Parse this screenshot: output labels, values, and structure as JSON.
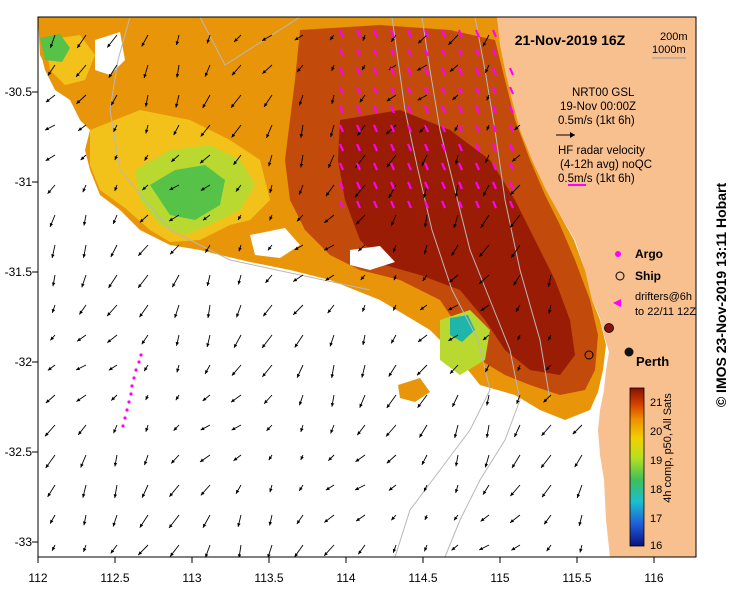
{
  "map": {
    "date_title": "21-Nov-2019 16Z",
    "depth_contours": [
      "200m",
      "1000m"
    ],
    "sst_product": {
      "line1": "NRT00 GSL",
      "line2": "19-Nov 00:00Z",
      "scale": "0.5m/s (1kt 6h)"
    },
    "hf_radar": {
      "line1": "HF radar velocity",
      "line2": "(4-12h avg) noQC",
      "scale": "0.5m/s (1kt 6h)"
    },
    "legend": {
      "argo": "Argo",
      "ship": "Ship",
      "drifters_line1": "drifters@6h",
      "drifters_line2": "to 22/11 12Z"
    },
    "city": "Perth",
    "x_ticks": [
      "112",
      "112.5",
      "113",
      "113.5",
      "114",
      "114.5",
      "115",
      "115.5",
      "116"
    ],
    "y_ticks": [
      "-30.5",
      "-31",
      "-31.5",
      "-32",
      "-32.5",
      "-33"
    ],
    "colorbar": {
      "ticks": [
        "21",
        "20",
        "19",
        "18",
        "17",
        "16"
      ],
      "label": "4h comp, p50, All Sats"
    },
    "credit": "© IMOS 23-Nov-2019 13:11 Hobart",
    "colors": {
      "land": "#f9c08f",
      "argo": "#ff00ff",
      "ship_marker": "#8b1010",
      "arrow": "#000000"
    }
  }
}
